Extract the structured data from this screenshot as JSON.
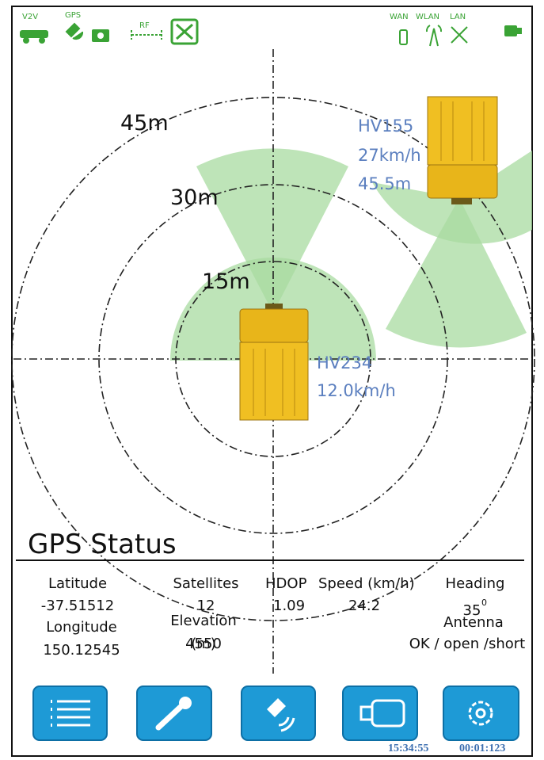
{
  "status_bar": {
    "v2v": "V2V",
    "gps": "GPS",
    "rf": "RF",
    "wan": "WAN",
    "wlan": "WLAN",
    "lan": "LAN"
  },
  "radar": {
    "rings": [
      "15m",
      "30m",
      "45m"
    ]
  },
  "vehicles": [
    {
      "id": "HV155",
      "speed": "27km/h",
      "distance": "45.5m"
    },
    {
      "id": "HV234",
      "speed": "12.0km/h"
    }
  ],
  "gps_status": {
    "title": "GPS Status",
    "latitude": {
      "label": "Latitude",
      "value": "-37.51512"
    },
    "longitude": {
      "label": "Longitude",
      "value": "150.12545"
    },
    "satellites": {
      "label": "Satellites",
      "value": "12"
    },
    "elevation": {
      "label": "Elevation",
      "unit": "(m)",
      "value": "4550"
    },
    "hdop": {
      "label": "HDOP",
      "value": "1.09"
    },
    "speed": {
      "label": "Speed (km/h)",
      "value": "24.2"
    },
    "heading": {
      "label": "Heading",
      "value": "35",
      "unit": "0"
    },
    "antenna": {
      "label": "Antenna",
      "value": "OK / open /short"
    }
  },
  "footer": {
    "time": "15:34:55",
    "elapsed": "00:01:123"
  }
}
